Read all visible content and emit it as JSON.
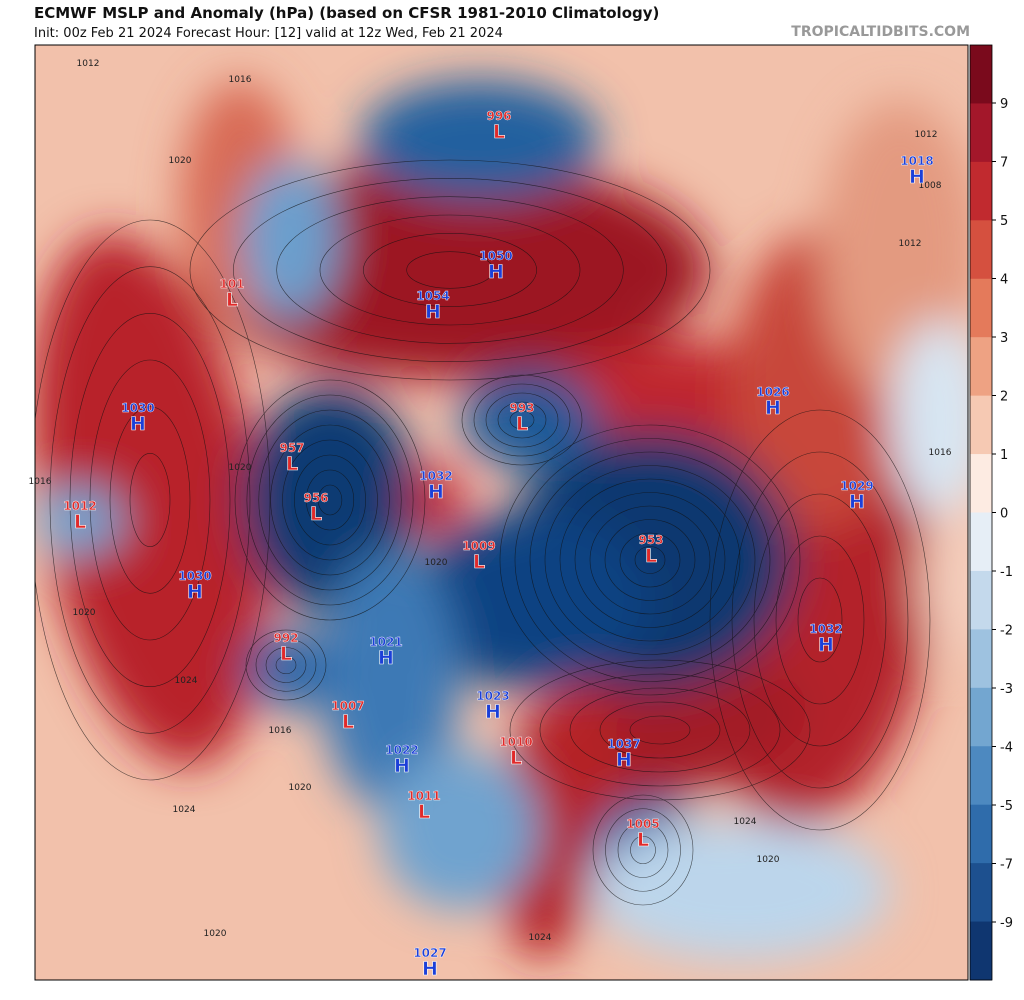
{
  "header": {
    "title": "ECMWF MSLP and Anomaly (hPa) (based on CFSR 1981-2010 Climatology)",
    "subtitle": "Init: 00z Feb 21 2024   Forecast Hour: [12]   valid at 12z Wed, Feb 21 2024",
    "source": "TROPICALTIDBITS.COM"
  },
  "colorbar": {
    "ticks": [
      9,
      7,
      5,
      4,
      3,
      2,
      1,
      0,
      -1,
      -2,
      -3,
      -4,
      -5,
      -7,
      -9
    ],
    "colors": [
      "#7a0a1c",
      "#a3172a",
      "#c12a2f",
      "#d5503f",
      "#e47a5b",
      "#eea283",
      "#f6c9b3",
      "#fdebe2",
      "#e6eef6",
      "#c4d9ec",
      "#9ec2e0",
      "#73a6d0",
      "#4d89c0",
      "#2f6cab",
      "#1d508f",
      "#0f3670"
    ]
  },
  "centers": [
    {
      "kind": "L",
      "value": "1012"
    },
    {
      "kind": "L",
      "value": "101"
    },
    {
      "kind": "H",
      "value": "1030"
    },
    {
      "kind": "H",
      "value": "1030"
    },
    {
      "kind": "L",
      "value": "957"
    },
    {
      "kind": "L",
      "value": "956"
    },
    {
      "kind": "L",
      "value": "992"
    },
    {
      "kind": "H",
      "value": "1032"
    },
    {
      "kind": "L",
      "value": "1009"
    },
    {
      "kind": "H",
      "value": "1021"
    },
    {
      "kind": "L",
      "value": "1007"
    },
    {
      "kind": "H",
      "value": "1023"
    },
    {
      "kind": "H",
      "value": "1022"
    },
    {
      "kind": "L",
      "value": "1010"
    },
    {
      "kind": "L",
      "value": "1011"
    },
    {
      "kind": "H",
      "value": "1037"
    },
    {
      "kind": "L",
      "value": "1005"
    },
    {
      "kind": "H",
      "value": "1027"
    },
    {
      "kind": "L",
      "value": "993"
    },
    {
      "kind": "L",
      "value": "953"
    },
    {
      "kind": "H",
      "value": "1032"
    },
    {
      "kind": "H",
      "value": "1029"
    },
    {
      "kind": "H",
      "value": "1026"
    },
    {
      "kind": "H",
      "value": "1050"
    },
    {
      "kind": "H",
      "value": "1054"
    },
    {
      "kind": "L",
      "value": "996"
    },
    {
      "kind": "H",
      "value": "1018"
    }
  ],
  "contour_labels": [
    "1012",
    "1016",
    "1020",
    "1016",
    "1020",
    "1020",
    "1024",
    "1024",
    "1020",
    "1016",
    "1024",
    "1020",
    "1024",
    "1020",
    "1016",
    "1012",
    "1008",
    "1012",
    "1020",
    "1024"
  ]
}
